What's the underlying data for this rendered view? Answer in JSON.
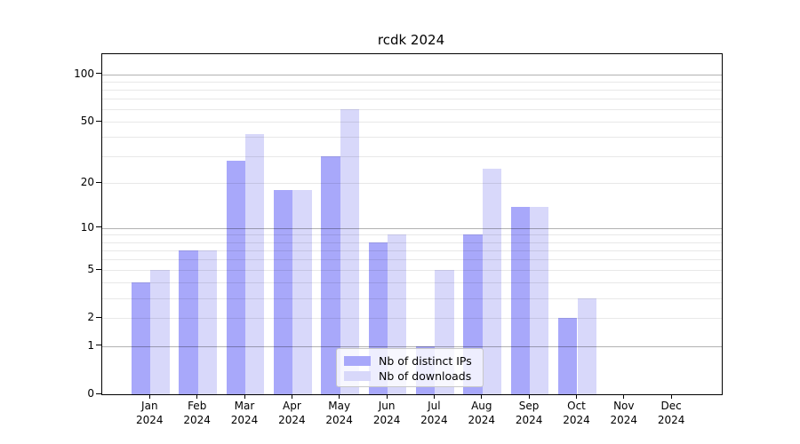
{
  "chart_data": {
    "type": "bar",
    "title": "rcdk 2024",
    "categories": [
      "Jan",
      "Feb",
      "Mar",
      "Apr",
      "May",
      "Jun",
      "Jul",
      "Aug",
      "Sep",
      "Oct",
      "Nov",
      "Dec"
    ],
    "x_year_label": "2024",
    "series": [
      {
        "name": "Nb of distinct IPs",
        "color": "#a8a8fa",
        "values": [
          4,
          7,
          28,
          18,
          30,
          8,
          1,
          9,
          14,
          2,
          0,
          0
        ]
      },
      {
        "name": "Nb of downloads",
        "color": "#d8d8fa",
        "values": [
          5,
          7,
          42,
          18,
          60,
          9,
          5,
          25,
          14,
          3,
          0,
          0
        ]
      }
    ],
    "y_scale": "log1p",
    "ylim": [
      0,
      133
    ],
    "y_tick_labels": [
      "100",
      "50",
      "20",
      "10",
      "5",
      "2",
      "1",
      "0"
    ],
    "y_tick_values": [
      100,
      50,
      20,
      10,
      5,
      2,
      1,
      0
    ],
    "y_major_grid": [
      1,
      10,
      100
    ],
    "y_minor_grid": [
      2,
      3,
      4,
      5,
      6,
      7,
      8,
      9,
      20,
      30,
      40,
      50,
      60,
      70,
      80,
      90
    ],
    "grid": "on",
    "legend_position": "lower center",
    "axis_color": "#000000",
    "major_grid_color": "#b0b0b0",
    "minor_grid_color": "#e8e8e8"
  }
}
